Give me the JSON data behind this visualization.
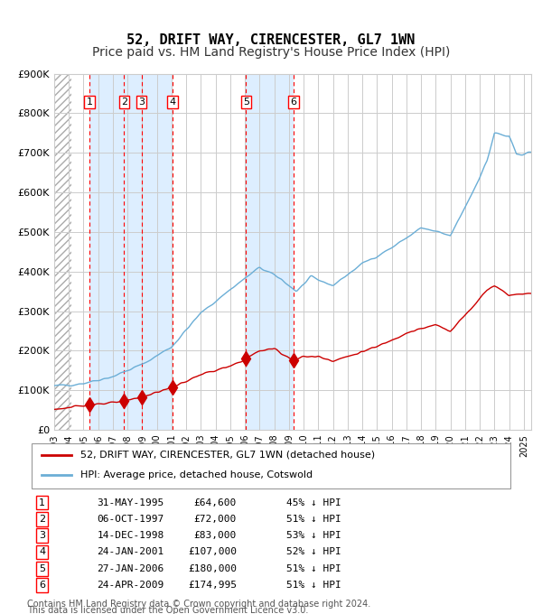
{
  "title": "52, DRIFT WAY, CIRENCESTER, GL7 1WN",
  "subtitle": "Price paid vs. HM Land Registry's House Price Index (HPI)",
  "ylabel": "",
  "ylim": [
    0,
    900000
  ],
  "yticks": [
    0,
    100000,
    200000,
    300000,
    400000,
    500000,
    600000,
    700000,
    800000,
    900000
  ],
  "ytick_labels": [
    "£0",
    "£100K",
    "£200K",
    "£300K",
    "£400K",
    "£500K",
    "£600K",
    "£700K",
    "£800K",
    "£900K"
  ],
  "hpi_color": "#6baed6",
  "price_color": "#cc0000",
  "transactions": [
    {
      "num": 1,
      "date_str": "31-MAY-1995",
      "date_x": 1995.41,
      "price": 64600,
      "pct": "45%"
    },
    {
      "num": 2,
      "date_str": "06-OCT-1997",
      "date_x": 1997.76,
      "price": 72000,
      "pct": "51%"
    },
    {
      "num": 3,
      "date_str": "14-DEC-1998",
      "date_x": 1998.95,
      "price": 83000,
      "pct": "53%"
    },
    {
      "num": 4,
      "date_str": "24-JAN-2001",
      "date_x": 2001.07,
      "price": 107000,
      "pct": "52%"
    },
    {
      "num": 5,
      "date_str": "27-JAN-2006",
      "date_x": 2006.07,
      "price": 180000,
      "pct": "51%"
    },
    {
      "num": 6,
      "date_str": "24-APR-2009",
      "date_x": 2009.31,
      "price": 174995,
      "pct": "51%"
    }
  ],
  "legend_line1": "52, DRIFT WAY, CIRENCESTER, GL7 1WN (detached house)",
  "legend_line2": "HPI: Average price, detached house, Cotswold",
  "footer1": "Contains HM Land Registry data © Crown copyright and database right 2024.",
  "footer2": "This data is licensed under the Open Government Licence v3.0.",
  "xlim_min": 1993.0,
  "xlim_max": 2025.5,
  "background_hatch_color": "#d0d8e8",
  "shade_color": "#ddeeff",
  "title_fontsize": 11,
  "subtitle_fontsize": 10
}
